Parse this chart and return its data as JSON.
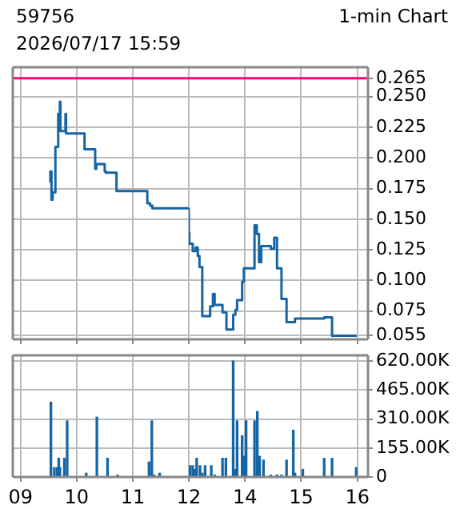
{
  "chart_data": [
    {
      "type": "step",
      "title": "59756",
      "subtitle": "2026/07/17 15:59",
      "annotations": [
        "1-min Chart"
      ],
      "x": [
        9.53,
        9.55,
        9.57,
        9.62,
        9.67,
        9.7,
        9.71,
        9.8,
        9.81,
        10.14,
        10.33,
        10.35,
        10.5,
        10.52,
        10.71,
        11.26,
        11.31,
        11.35,
        11.46,
        12.0
      ],
      "values": [
        0.18,
        0.189,
        0.166,
        0.172,
        0.209,
        0.236,
        0.246,
        0.222,
        0.236,
        0.22,
        0.207,
        0.191,
        0.195,
        0.189,
        0.188,
        0.173,
        0.163,
        0.161,
        0.159,
        0.159
      ],
      "color": "#1565a5",
      "marker": "none",
      "line_style": "solid",
      "xlim": [
        8.86,
        12
      ],
      "xticks": [
        9,
        10,
        11,
        12
      ],
      "ylim": [
        0.052,
        0.274
      ],
      "yticks": [
        0.055,
        0.075,
        0.1,
        0.125,
        0.15,
        0.175,
        0.2,
        0.225,
        0.25,
        0.265
      ],
      "ref_lines": [
        {
          "axis": "y",
          "value": 0.265,
          "color": "#ff007f"
        }
      ],
      "grid": true,
      "tick_labels": false
    },
    {
      "type": "step",
      "x": [
        13.0,
        13.01,
        13.07,
        13.12,
        13.16,
        13.19,
        13.24,
        13.38,
        13.43,
        13.46,
        13.6,
        13.67,
        13.79,
        13.83,
        13.86,
        13.95,
        13.98,
        14.17,
        14.21,
        14.25,
        14.29,
        14.46,
        14.52,
        14.57,
        14.65,
        14.74,
        14.89,
        15.41,
        15.55,
        15.97,
        15.99
      ],
      "values": [
        0.159,
        0.139,
        0.13,
        0.124,
        0.127,
        0.12,
        0.111,
        0.071,
        0.079,
        0.089,
        0.08,
        0.074,
        0.06,
        0.072,
        0.076,
        0.084,
        0.099,
        0.11,
        0.145,
        0.138,
        0.115,
        0.128,
        0.126,
        0.135,
        0.11,
        0.085,
        0.066,
        0.069,
        0.07,
        0.055,
        0.055
      ],
      "color": "#1565a5",
      "marker": "none",
      "line_style": "solid",
      "xlim": [
        13,
        16.19
      ],
      "xticks": [
        14,
        15,
        16
      ],
      "ylim": [
        0.052,
        0.274
      ],
      "yticks": [
        {
          "value": 0.055,
          "label": "0.055"
        },
        {
          "value": 0.075,
          "label": "0.075"
        },
        {
          "value": 0.1,
          "label": "0.100"
        },
        {
          "value": 0.125,
          "label": "0.125"
        },
        {
          "value": 0.15,
          "label": "0.150"
        },
        {
          "value": 0.175,
          "label": "0.175"
        },
        {
          "value": 0.2,
          "label": "0.200"
        },
        {
          "value": 0.225,
          "label": "0.225"
        },
        {
          "value": 0.25,
          "label": "0.250"
        },
        {
          "value": 0.265,
          "label": "0.265"
        }
      ],
      "ref_lines": [
        {
          "axis": "y",
          "value": 0.265,
          "color": "#ff007f"
        }
      ],
      "grid": true,
      "tick_labels": "y"
    },
    {
      "type": "bar",
      "x": [
        9.54,
        9.6,
        9.65,
        9.68,
        9.7,
        9.78,
        9.83,
        10.17,
        10.36,
        10.52,
        10.55,
        10.73,
        11.29,
        11.34,
        11.38,
        11.48
      ],
      "values": [
        400000,
        50000,
        50000,
        100000,
        50000,
        100000,
        300000,
        20000,
        320000,
        null,
        100000,
        10000,
        80000,
        300000,
        10000,
        20000
      ],
      "color": "#1565a5",
      "xlim": [
        8.86,
        12
      ],
      "xticks": [
        {
          "value": 9,
          "label": "09"
        },
        10,
        11,
        12
      ],
      "ylim": [
        0,
        651000
      ],
      "yticks": [
        0,
        155000,
        310000,
        465000,
        620000
      ],
      "grid": true,
      "tick_labels": "x"
    },
    {
      "type": "bar",
      "x": [
        13.02,
        13.07,
        13.11,
        13.14,
        13.17,
        13.2,
        13.24,
        13.29,
        13.36,
        13.4,
        13.46,
        13.6,
        13.66,
        13.79,
        13.83,
        13.86,
        13.95,
        13.98,
        14.02,
        14.17,
        14.22,
        14.26,
        14.33,
        14.46,
        14.5,
        14.57,
        14.65,
        14.74,
        14.86,
        14.89,
        15.03,
        15.41,
        15.55,
        15.98
      ],
      "values": [
        60000,
        60000,
        40000,
        100000,
        null,
        60000,
        20000,
        60000,
        null,
        60000,
        10000,
        100000,
        100000,
        620000,
        40000,
        300000,
        220000,
        110000,
        300000,
        300000,
        350000,
        110000,
        90000,
        10000,
        null,
        10000,
        10000,
        90000,
        250000,
        20000,
        40000,
        100000,
        100000,
        50000
      ],
      "color": "#1565a5",
      "xlim": [
        13,
        16.19
      ],
      "xticks": [
        14,
        15,
        16
      ],
      "ylim": [
        0,
        651000
      ],
      "yticks": [
        0,
        {
          "value": 155000,
          "label": "155.00K"
        },
        {
          "value": 310000,
          "label": "310.00K"
        },
        {
          "value": 465000,
          "label": "465.00K"
        },
        {
          "value": 620000,
          "label": "620.00K"
        }
      ],
      "grid": true
    }
  ]
}
